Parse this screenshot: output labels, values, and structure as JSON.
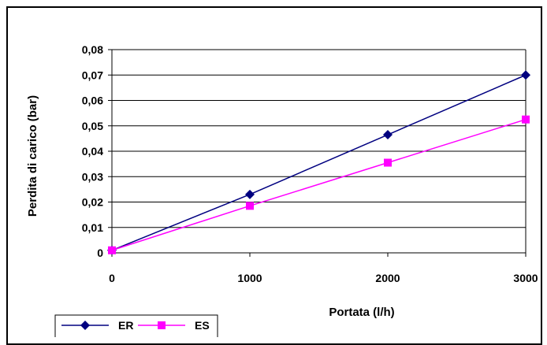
{
  "chart_data": {
    "type": "line",
    "xlabel": "Portata (l/h)",
    "ylabel": "Perdita di carico (bar)",
    "xlim": [
      0,
      3000
    ],
    "ylim": [
      0,
      0.08
    ],
    "x_ticks": [
      "0",
      "1000",
      "2000",
      "3000"
    ],
    "y_ticks": [
      "0",
      "0,01",
      "0,02",
      "0,03",
      "0,04",
      "0,05",
      "0,06",
      "0,07",
      "0,08"
    ],
    "grid": "horizontal",
    "legend_position": "bottom-left",
    "series": [
      {
        "name": "ER",
        "color": "#000080",
        "marker": "diamond",
        "x": [
          0,
          1000,
          2000,
          3000
        ],
        "y": [
          0.001,
          0.023,
          0.0465,
          0.07
        ]
      },
      {
        "name": "ES",
        "color": "#ff00ff",
        "marker": "square",
        "x": [
          0,
          1000,
          2000,
          3000
        ],
        "y": [
          0.001,
          0.0185,
          0.0355,
          0.0525
        ]
      }
    ]
  }
}
